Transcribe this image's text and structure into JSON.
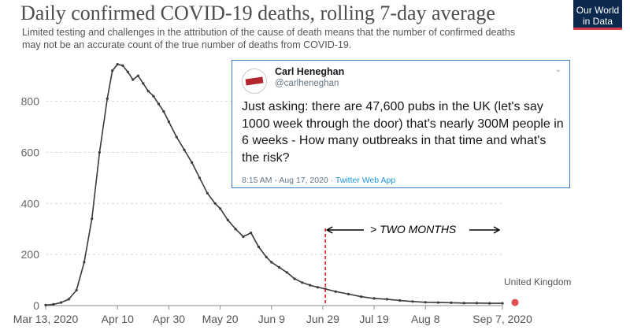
{
  "header": {
    "title": "Daily confirmed COVID-19 deaths, rolling 7-day average",
    "subtitle": "Limited testing and challenges in the attribution of the cause of death means that the number of confirmed deaths may not be an accurate count of the true number of deaths from COVID-19.",
    "logo_line1": "Our World",
    "logo_line2": "in Data"
  },
  "tweet": {
    "name": "Carl Heneghan",
    "handle": "@carlheneghan",
    "text": "Just asking: there are 47,600 pubs in the UK (let's say 1000 week through the door) that's nearly 300M people in 6 weeks - How many outbreaks in that time and what's the risk?",
    "time": "8:15 AM - Aug 17, 2020",
    "source": "Twitter Web App"
  },
  "annotation": {
    "label": "> TWO MONTHS",
    "start_date": "Jun 30"
  },
  "colors": {
    "line": "#3a3a3a",
    "marker": "#3a3a3a",
    "grid": "#d9d9d9",
    "annotation_line": "#cc2222",
    "end_dot": "#e05050",
    "tweet_border": "#3e80c3"
  },
  "chart_data": {
    "type": "line",
    "title": "Daily confirmed COVID-19 deaths, rolling 7-day average",
    "series_label": "United Kingdom",
    "x_ticks": [
      "Mar 13, 2020",
      "Apr 10",
      "Apr 30",
      "May 20",
      "Jun 9",
      "Jun 29",
      "Jul 19",
      "Aug 8",
      "Sep 7, 2020"
    ],
    "y_ticks": [
      0,
      200,
      400,
      600,
      800
    ],
    "ylim": [
      0,
      950
    ],
    "grid": "horizontal",
    "series": [
      {
        "name": "United Kingdom",
        "points": [
          [
            "Mar 13",
            2
          ],
          [
            "Mar 16",
            5
          ],
          [
            "Mar 19",
            12
          ],
          [
            "Mar 22",
            25
          ],
          [
            "Mar 25",
            60
          ],
          [
            "Mar 28",
            170
          ],
          [
            "Mar 31",
            340
          ],
          [
            "Apr 3",
            600
          ],
          [
            "Apr 6",
            810
          ],
          [
            "Apr 8",
            920
          ],
          [
            "Apr 10",
            945
          ],
          [
            "Apr 12",
            940
          ],
          [
            "Apr 14",
            915
          ],
          [
            "Apr 16",
            885
          ],
          [
            "Apr 18",
            900
          ],
          [
            "Apr 20",
            870
          ],
          [
            "Apr 22",
            840
          ],
          [
            "Apr 24",
            820
          ],
          [
            "Apr 26",
            790
          ],
          [
            "Apr 28",
            760
          ],
          [
            "Apr 30",
            720
          ],
          [
            "May 3",
            660
          ],
          [
            "May 6",
            610
          ],
          [
            "May 9",
            560
          ],
          [
            "May 12",
            500
          ],
          [
            "May 15",
            440
          ],
          [
            "May 18",
            400
          ],
          [
            "May 20",
            380
          ],
          [
            "May 23",
            335
          ],
          [
            "May 26",
            300
          ],
          [
            "May 29",
            270
          ],
          [
            "Jun 1",
            285
          ],
          [
            "Jun 4",
            230
          ],
          [
            "Jun 7",
            190
          ],
          [
            "Jun 9",
            170
          ],
          [
            "Jun 12",
            150
          ],
          [
            "Jun 15",
            130
          ],
          [
            "Jun 18",
            105
          ],
          [
            "Jun 21",
            90
          ],
          [
            "Jun 24",
            80
          ],
          [
            "Jun 27",
            72
          ],
          [
            "Jun 30",
            65
          ],
          [
            "Jul 4",
            55
          ],
          [
            "Jul 9",
            45
          ],
          [
            "Jul 14",
            35
          ],
          [
            "Jul 19",
            28
          ],
          [
            "Jul 24",
            25
          ],
          [
            "Jul 29",
            20
          ],
          [
            "Aug 3",
            16
          ],
          [
            "Aug 8",
            13
          ],
          [
            "Aug 13",
            12
          ],
          [
            "Aug 18",
            11
          ],
          [
            "Aug 23",
            10
          ],
          [
            "Aug 28",
            10
          ],
          [
            "Sep 2",
            9
          ],
          [
            "Sep 7",
            9
          ]
        ]
      }
    ]
  }
}
